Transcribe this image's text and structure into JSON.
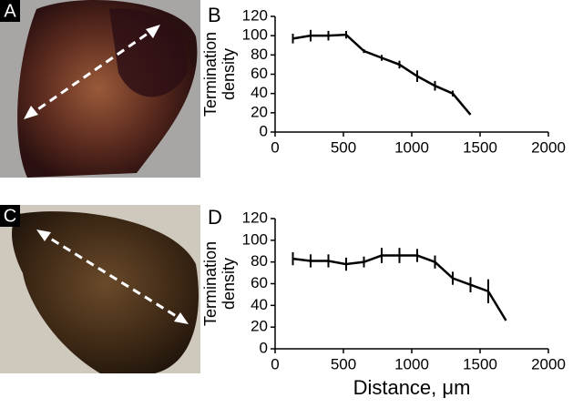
{
  "image_panels": [
    {
      "label": "A"
    },
    {
      "label": "C"
    }
  ],
  "chart_data": [
    {
      "type": "line",
      "panel_label": "B",
      "ylabel": [
        "Termination",
        "density"
      ],
      "x": [
        130,
        260,
        390,
        520,
        650,
        780,
        910,
        1040,
        1170,
        1300,
        1430
      ],
      "series": [
        {
          "color": "#000000",
          "values": [
            97,
            100,
            100,
            101,
            84,
            77,
            70,
            58,
            48,
            40,
            18
          ],
          "errors": [
            5,
            6,
            5,
            4,
            2,
            3,
            4,
            6,
            5,
            3,
            null
          ]
        }
      ],
      "xlim": [
        0,
        2000
      ],
      "xticks": [
        0,
        500,
        1000,
        1500,
        2000
      ],
      "ylim": [
        0,
        120
      ],
      "yticks": [
        0,
        20,
        40,
        60,
        80,
        100,
        120
      ]
    },
    {
      "type": "line",
      "panel_label": "D",
      "ylabel": [
        "Termination",
        "density"
      ],
      "xlabel": "Distance, μm",
      "x": [
        130,
        260,
        390,
        520,
        650,
        780,
        910,
        1040,
        1170,
        1300,
        1430,
        1560,
        1690
      ],
      "series": [
        {
          "color": "#000000",
          "values": [
            83,
            81,
            81,
            78,
            80,
            86,
            86,
            86,
            80,
            65,
            59,
            53,
            26
          ],
          "errors": [
            6,
            6,
            6,
            6,
            5,
            7,
            7,
            6,
            6,
            6,
            7,
            11,
            null
          ]
        }
      ],
      "xlim": [
        0,
        2000
      ],
      "xticks": [
        0,
        500,
        1000,
        1500,
        2000
      ],
      "ylim": [
        0,
        120
      ],
      "yticks": [
        0,
        20,
        40,
        60,
        80,
        100,
        120
      ]
    }
  ]
}
